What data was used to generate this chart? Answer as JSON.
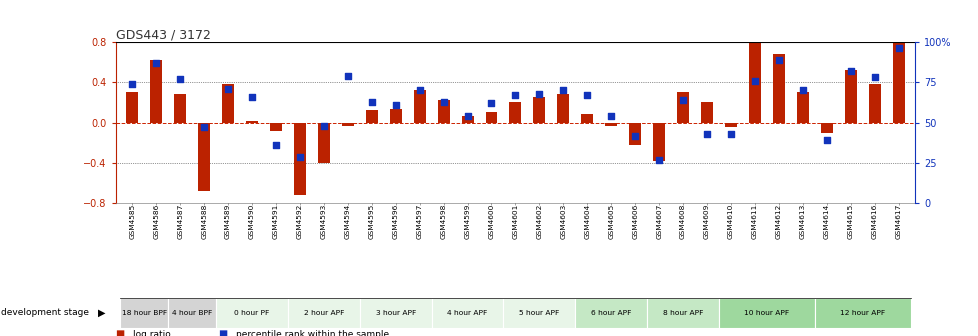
{
  "title": "GDS443 / 3172",
  "samples": [
    "GSM4585",
    "GSM4586",
    "GSM4587",
    "GSM4588",
    "GSM4589",
    "GSM4590",
    "GSM4591",
    "GSM4592",
    "GSM4593",
    "GSM4594",
    "GSM4595",
    "GSM4596",
    "GSM4597",
    "GSM4598",
    "GSM4599",
    "GSM4600",
    "GSM4601",
    "GSM4602",
    "GSM4603",
    "GSM4604",
    "GSM4605",
    "GSM4606",
    "GSM4607",
    "GSM4608",
    "GSM4609",
    "GSM4610",
    "GSM4611",
    "GSM4612",
    "GSM4613",
    "GSM4614",
    "GSM4615",
    "GSM4616",
    "GSM4617"
  ],
  "log_ratios": [
    0.3,
    0.62,
    0.28,
    -0.68,
    0.38,
    0.02,
    -0.08,
    -0.72,
    -0.4,
    -0.03,
    0.13,
    0.14,
    0.32,
    0.22,
    0.07,
    0.11,
    0.2,
    0.25,
    0.28,
    0.09,
    -0.03,
    -0.22,
    -0.38,
    0.3,
    0.2,
    -0.04,
    0.82,
    0.68,
    0.3,
    -0.1,
    0.52,
    0.38,
    0.9
  ],
  "percentile_ranks": [
    74,
    87,
    77,
    47,
    71,
    66,
    36,
    29,
    48,
    79,
    63,
    61,
    70,
    63,
    54,
    62,
    67,
    68,
    70,
    67,
    54,
    42,
    27,
    64,
    43,
    43,
    76,
    89,
    70,
    39,
    82,
    78,
    96
  ],
  "groups": [
    {
      "label": "18 hour BPF",
      "start": 0,
      "end": 2,
      "color": "#d4d4d4"
    },
    {
      "label": "4 hour BPF",
      "start": 2,
      "end": 4,
      "color": "#d4d4d4"
    },
    {
      "label": "0 hour PF",
      "start": 4,
      "end": 7,
      "color": "#e8f5e8"
    },
    {
      "label": "2 hour APF",
      "start": 7,
      "end": 10,
      "color": "#e8f5e8"
    },
    {
      "label": "3 hour APF",
      "start": 10,
      "end": 13,
      "color": "#e8f5e8"
    },
    {
      "label": "4 hour APF",
      "start": 13,
      "end": 16,
      "color": "#e8f5e8"
    },
    {
      "label": "5 hour APF",
      "start": 16,
      "end": 19,
      "color": "#e8f5e8"
    },
    {
      "label": "6 hour APF",
      "start": 19,
      "end": 22,
      "color": "#c5e8c5"
    },
    {
      "label": "8 hour APF",
      "start": 22,
      "end": 25,
      "color": "#c5e8c5"
    },
    {
      "label": "10 hour APF",
      "start": 25,
      "end": 29,
      "color": "#9ed89e"
    },
    {
      "label": "12 hour APF",
      "start": 29,
      "end": 33,
      "color": "#9ed89e"
    }
  ],
  "bar_color": "#bb2200",
  "dot_color": "#1133bb",
  "ylim_left": [
    -0.8,
    0.8
  ],
  "ylim_right": [
    0,
    100
  ],
  "yticks_left": [
    -0.8,
    -0.4,
    0.0,
    0.4,
    0.8
  ],
  "yticks_right": [
    0,
    25,
    50,
    75,
    100
  ],
  "y2labels": [
    "0",
    "25",
    "50",
    "75",
    "100%"
  ],
  "bar_width": 0.5,
  "title_color": "#333333",
  "zero_line_color": "#cc2200",
  "grid_line_color": "#333333"
}
